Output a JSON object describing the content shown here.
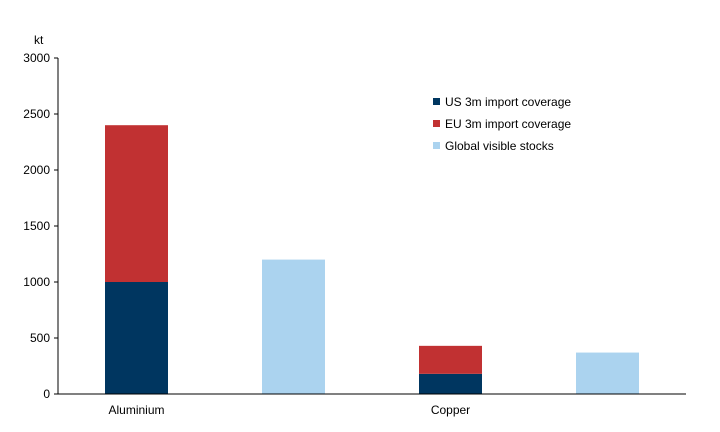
{
  "chart_data": {
    "type": "bar",
    "stacked": true,
    "ylabel": "kt",
    "ylim": [
      0,
      3000
    ],
    "yticks": [
      0,
      500,
      1000,
      1500,
      2000,
      2500,
      3000
    ],
    "categories": [
      "Aluminium",
      "Copper"
    ],
    "bars": [
      {
        "category": "Aluminium",
        "segments": [
          {
            "series": "US 3m import coverage",
            "value": 1000
          },
          {
            "series": "EU 3m import coverage",
            "value": 1400
          }
        ]
      },
      {
        "category": "",
        "segments": [
          {
            "series": "Global visible stocks",
            "value": 1200
          }
        ]
      },
      {
        "category": "Copper",
        "segments": [
          {
            "series": "US 3m import coverage",
            "value": 180
          },
          {
            "series": "EU 3m import coverage",
            "value": 250
          }
        ]
      },
      {
        "category": "",
        "segments": [
          {
            "series": "Global visible stocks",
            "value": 370
          }
        ]
      }
    ],
    "series": [
      {
        "name": "US 3m import coverage",
        "color": "#003660"
      },
      {
        "name": "EU 3m import coverage",
        "color": "#C13132"
      },
      {
        "name": "Global visible stocks",
        "color": "#ABD3EF"
      }
    ],
    "grid": false,
    "legend": "upper-right-inside"
  }
}
